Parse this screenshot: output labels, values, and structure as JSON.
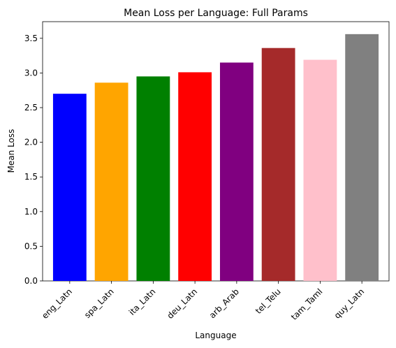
{
  "chart_data": {
    "type": "bar",
    "title": "Mean Loss per Language: Full Params",
    "xlabel": "Language",
    "ylabel": "Mean Loss",
    "categories": [
      "eng_Latn",
      "spa_Latn",
      "ita_Latn",
      "deu_Latn",
      "arb_Arab",
      "tel_Telu",
      "tam_Taml",
      "quy_Latn"
    ],
    "values": [
      2.7,
      2.86,
      2.95,
      3.01,
      3.15,
      3.36,
      3.19,
      3.56
    ],
    "colors": [
      "#0000ff",
      "#ffa500",
      "#008000",
      "#ff0000",
      "#800080",
      "#a52a2a",
      "#ffc0cb",
      "#808080"
    ],
    "yticks": [
      "0.0",
      "0.5",
      "1.0",
      "1.5",
      "2.0",
      "2.5",
      "3.0",
      "3.5"
    ],
    "ylim": [
      0,
      3.74
    ],
    "grid": false,
    "legend": "none"
  }
}
